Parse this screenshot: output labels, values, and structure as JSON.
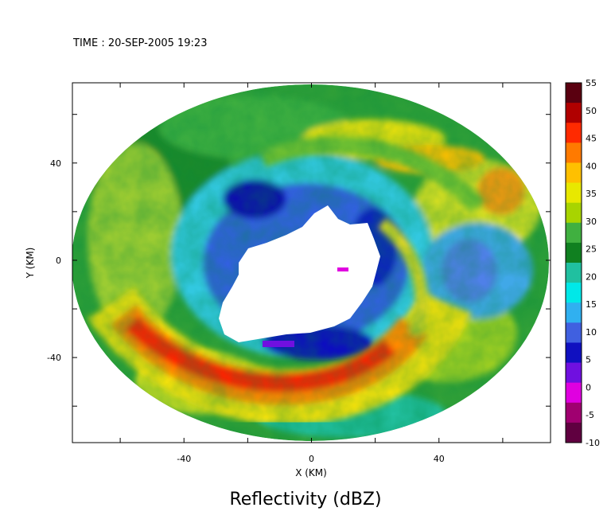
{
  "time_label": "TIME : 20-SEP-2005 19:23",
  "chart_data": {
    "type": "heatmap",
    "title": "Reflectivity (dBZ)",
    "xlabel": "X (KM)",
    "ylabel": "Y (KM)",
    "xlim": [
      -75,
      75
    ],
    "ylim": [
      -75,
      73
    ],
    "x_ticks": [
      -40,
      0,
      40
    ],
    "y_ticks": [
      40,
      0,
      -40
    ],
    "colorbar": {
      "label_values": [
        "55",
        "50",
        "45",
        "40",
        "35",
        "30",
        "25",
        "20",
        "15",
        "10",
        "5",
        "0",
        "-5",
        "-10"
      ],
      "range": [
        -10,
        55
      ],
      "colors": [
        "#5a0010",
        "#b00000",
        "#ff2a00",
        "#ff7a00",
        "#ffc000",
        "#e8e800",
        "#a8d400",
        "#40b040",
        "#108020",
        "#20c0a0",
        "#00e8e8",
        "#30b0f0",
        "#4060e0",
        "#1010c0",
        "#7010e0",
        "#e000e0",
        "#a00070",
        "#600040"
      ]
    },
    "features": {
      "radar_coverage": "elliptical region centered near (0,0) with radius about 75 km",
      "echo_free_eye": "white area near (-5,-5) with radius about 22 km",
      "strong_band": "45-50 dBZ arc in the south-west from (-60,-20) to (20,-45)",
      "weak_ring": "10-15 dBZ ring around the eye"
    }
  }
}
